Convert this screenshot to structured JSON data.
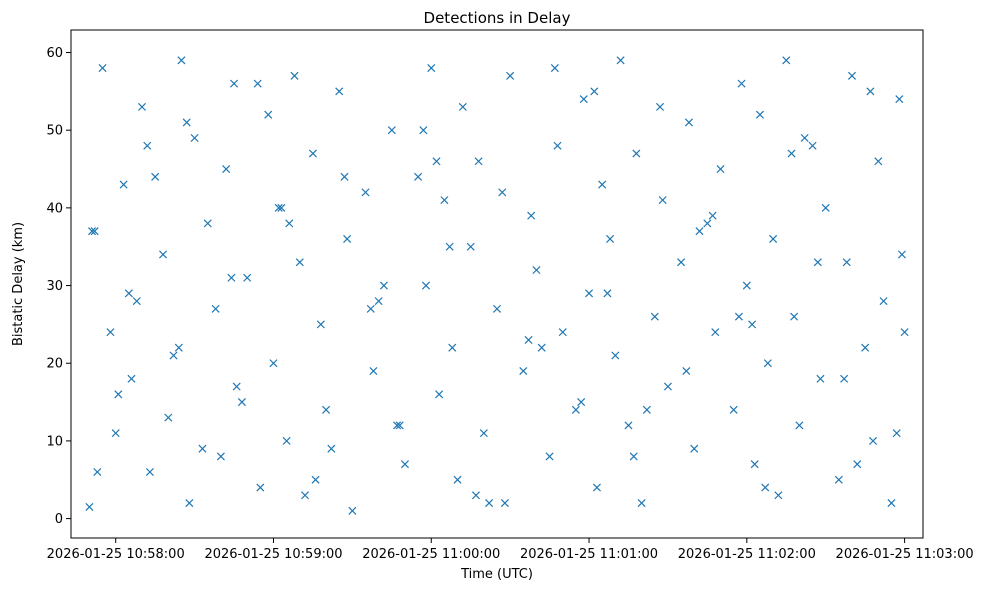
{
  "chart_data": {
    "type": "scatter",
    "title": "Detections in Delay",
    "xlabel": "Time (UTC)",
    "ylabel": "Bistatic Delay (km)",
    "x_tick_labels": [
      "2026-01-25 10:58:00",
      "2026-01-25 10:59:00",
      "2026-01-25 11:00:00",
      "2026-01-25 11:01:00",
      "2026-01-25 11:02:00",
      "2026-01-25 11:03:00"
    ],
    "xlim": [
      "2026-01-25 10:57:43",
      "2026-01-25 11:03:07"
    ],
    "ylim": [
      -2.5,
      62.9
    ],
    "y_ticks": [
      0,
      10,
      20,
      30,
      40,
      50,
      60
    ],
    "grid": false,
    "marker": "x",
    "color": "#1f77b4",
    "series": [
      {
        "x": [
          "2026-01-25 10:57:50",
          "2026-01-25 10:57:52",
          "2026-01-25 10:57:55",
          "2026-01-25 10:57:58",
          "2026-01-25 10:58:00",
          "2026-01-25 10:58:03",
          "2026-01-25 10:58:05",
          "2026-01-25 10:58:06",
          "2026-01-25 10:58:10",
          "2026-01-25 10:58:13",
          "2026-01-25 10:58:15",
          "2026-01-25 10:58:18",
          "2026-01-25 10:58:20",
          "2026-01-25 10:58:24",
          "2026-01-25 10:58:25",
          "2026-01-25 10:58:28",
          "2026-01-25 10:58:30",
          "2026-01-25 10:58:35",
          "2026-01-25 10:58:38",
          "2026-01-25 10:58:40",
          "2026-01-25 10:58:42",
          "2026-01-25 10:58:45",
          "2026-01-25 10:58:48",
          "2026-01-25 10:58:50",
          "2026-01-25 10:58:55",
          "2026-01-25 10:58:58",
          "2026-01-25 10:59:00",
          "2026-01-25 10:59:03",
          "2026-01-25 10:59:05",
          "2026-01-25 10:59:08",
          "2026-01-25 10:59:10",
          "2026-01-25 10:59:12",
          "2026-01-25 10:59:15",
          "2026-01-25 10:59:18",
          "2026-01-25 10:59:20",
          "2026-01-25 10:59:25",
          "2026-01-25 10:59:28",
          "2026-01-25 10:59:30",
          "2026-01-25 10:59:35",
          "2026-01-25 10:59:38",
          "2026-01-25 10:59:40",
          "2026-01-25 10:59:45",
          "2026-01-25 10:59:48",
          "2026-01-25 10:59:50",
          "2026-01-25 10:59:55",
          "2026-01-25 10:59:58",
          "2026-01-25 11:00:00",
          "2026-01-25 11:00:03",
          "2026-01-25 11:00:05",
          "2026-01-25 11:00:08",
          "2026-01-25 11:00:10",
          "2026-01-25 11:00:12",
          "2026-01-25 11:00:15",
          "2026-01-25 11:00:18",
          "2026-01-25 11:00:20",
          "2026-01-25 11:00:25",
          "2026-01-25 11:00:28",
          "2026-01-25 11:00:30",
          "2026-01-25 11:00:35",
          "2026-01-25 11:00:38",
          "2026-01-25 11:00:40",
          "2026-01-25 11:00:45",
          "2026-01-25 11:00:48",
          "2026-01-25 11:00:50",
          "2026-01-25 11:00:55",
          "2026-01-25 11:00:58",
          "2026-01-25 11:01:00",
          "2026-01-25 11:01:03",
          "2026-01-25 11:01:05",
          "2026-01-25 11:01:08",
          "2026-01-25 11:01:10",
          "2026-01-25 11:01:12",
          "2026-01-25 11:01:15",
          "2026-01-25 11:01:18",
          "2026-01-25 11:01:20",
          "2026-01-25 11:01:25",
          "2026-01-25 11:01:28",
          "2026-01-25 11:01:30",
          "2026-01-25 11:01:35",
          "2026-01-25 11:01:38",
          "2026-01-25 11:01:40",
          "2026-01-25 11:01:45",
          "2026-01-25 11:01:48",
          "2026-01-25 11:01:50",
          "2026-01-25 11:01:55",
          "2026-01-25 11:01:58",
          "2026-01-25 11:02:00",
          "2026-01-25 11:02:03",
          "2026-01-25 11:02:05",
          "2026-01-25 11:02:08",
          "2026-01-25 11:02:10",
          "2026-01-25 11:02:12",
          "2026-01-25 11:02:15",
          "2026-01-25 11:02:18",
          "2026-01-25 11:02:20",
          "2026-01-25 11:02:25",
          "2026-01-25 11:02:28",
          "2026-01-25 11:02:30",
          "2026-01-25 11:02:35",
          "2026-01-25 11:02:38",
          "2026-01-25 11:02:40",
          "2026-01-25 11:02:45",
          "2026-01-25 11:02:48",
          "2026-01-25 11:02:50",
          "2026-01-25 11:02:52",
          "2026-01-25 11:02:55",
          "2026-01-25 11:02:58",
          "2026-01-25 11:03:00",
          "2026-01-25 10:57:51",
          "2026-01-25 10:58:01",
          "2026-01-25 10:58:12",
          "2026-01-25 10:58:22",
          "2026-01-25 10:58:33",
          "2026-01-25 10:58:44",
          "2026-01-25 10:58:54",
          "2026-01-25 10:59:06",
          "2026-01-25 10:59:16",
          "2026-01-25 10:59:27",
          "2026-01-25 10:59:37",
          "2026-01-25 10:59:47",
          "2026-01-25 10:59:57",
          "2026-01-25 11:00:07",
          "2026-01-25 11:00:17",
          "2026-01-25 11:00:27",
          "2026-01-25 11:00:37",
          "2026-01-25 11:00:47",
          "2026-01-25 11:00:57",
          "2026-01-25 11:01:07",
          "2026-01-25 11:01:17",
          "2026-01-25 11:01:27",
          "2026-01-25 11:01:37",
          "2026-01-25 11:01:47",
          "2026-01-25 11:01:57",
          "2026-01-25 11:02:07",
          "2026-01-25 11:02:17",
          "2026-01-25 11:02:27",
          "2026-01-25 11:02:37",
          "2026-01-25 11:02:47",
          "2026-01-25 11:02:57",
          "2026-01-25 10:57:53",
          "2026-01-25 10:58:08",
          "2026-01-25 10:58:27",
          "2026-01-25 10:58:46",
          "2026-01-25 10:59:02",
          "2026-01-25 10:59:22",
          "2026-01-25 10:59:42",
          "2026-01-25 11:00:02",
          "2026-01-25 11:00:22",
          "2026-01-25 11:00:42",
          "2026-01-25 11:01:02",
          "2026-01-25 11:01:22",
          "2026-01-25 11:01:42",
          "2026-01-25 11:02:02",
          "2026-01-25 11:02:22",
          "2026-01-25 11:02:42",
          "2026-01-25 11:02:59"
        ],
        "y": [
          1.5,
          37,
          58,
          24,
          11,
          43,
          29,
          18,
          53,
          6,
          44,
          34,
          13,
          22,
          59,
          2,
          49,
          38,
          27,
          8,
          45,
          56,
          15,
          31,
          4,
          52,
          20,
          40,
          10,
          57,
          33,
          3,
          47,
          25,
          14,
          55,
          36,
          1,
          42,
          19,
          28,
          50,
          12,
          7,
          44,
          30,
          58,
          16,
          41,
          22,
          5,
          53,
          35,
          46,
          11,
          27,
          2,
          57,
          19,
          39,
          32,
          8,
          48,
          24,
          14,
          54,
          29,
          4,
          43,
          36,
          21,
          59,
          12,
          47,
          2,
          26,
          41,
          17,
          33,
          51,
          9,
          38,
          24,
          45,
          14,
          56,
          30,
          7,
          52,
          20,
          36,
          3,
          59,
          26,
          12,
          48,
          18,
          40,
          5,
          33,
          57,
          22,
          10,
          46,
          28,
          2,
          54,
          24,
          37,
          16,
          48,
          21,
          9,
          31,
          56,
          38,
          5,
          44,
          27,
          12,
          50,
          35,
          3,
          42,
          23,
          58,
          15,
          29,
          8,
          53,
          19,
          39,
          26,
          4,
          47,
          33,
          18,
          55,
          11,
          6,
          28,
          51,
          17,
          40,
          9,
          30,
          46,
          2,
          22,
          55,
          14,
          37,
          25,
          49,
          7,
          34
        ],
        "row_seeds": []
      }
    ]
  }
}
